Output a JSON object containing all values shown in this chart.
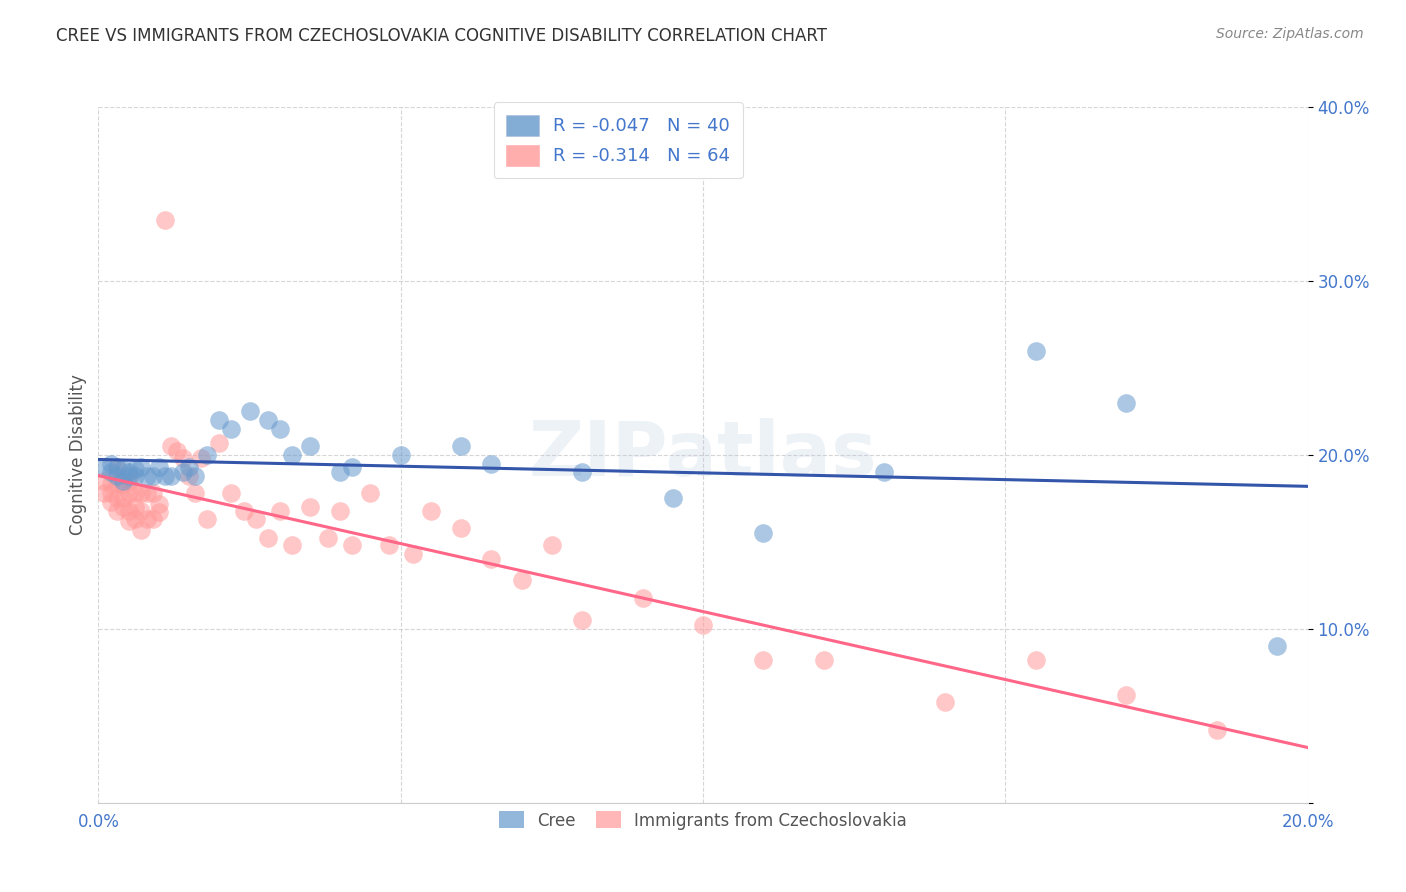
{
  "title": "CREE VS IMMIGRANTS FROM CZECHOSLOVAKIA COGNITIVE DISABILITY CORRELATION CHART",
  "source": "Source: ZipAtlas.com",
  "ylabel": "Cognitive Disability",
  "xlim": [
    0.0,
    0.2
  ],
  "ylim": [
    0.0,
    0.4
  ],
  "xticks": [
    0.0,
    0.05,
    0.1,
    0.15,
    0.2
  ],
  "xtick_labels": [
    "0.0%",
    "",
    "",
    "",
    "20.0%"
  ],
  "yticks": [
    0.0,
    0.1,
    0.2,
    0.3,
    0.4
  ],
  "ytick_labels": [
    "",
    "10.0%",
    "20.0%",
    "30.0%",
    "40.0%"
  ],
  "legend_labels": [
    "Cree",
    "Immigrants from Czechoslovakia"
  ],
  "cree_R": "-0.047",
  "cree_N": "40",
  "immig_R": "-0.314",
  "immig_N": "64",
  "blue_color": "#6699CC",
  "pink_color": "#FF9999",
  "blue_line_color": "#3355AA",
  "pink_line_color": "#FF6688",
  "label_color": "#4477CC",
  "background_color": "#FFFFFF",
  "grid_color": "#CCCCCC",
  "title_color": "#333333",
  "source_color": "#888888",
  "watermark": "ZIPatlas",
  "cree_x": [
    0.001,
    0.002,
    0.002,
    0.003,
    0.003,
    0.004,
    0.004,
    0.005,
    0.005,
    0.006,
    0.006,
    0.007,
    0.008,
    0.009,
    0.01,
    0.011,
    0.012,
    0.014,
    0.015,
    0.016,
    0.018,
    0.02,
    0.022,
    0.025,
    0.028,
    0.03,
    0.032,
    0.035,
    0.04,
    0.042,
    0.05,
    0.06,
    0.065,
    0.08,
    0.095,
    0.11,
    0.13,
    0.155,
    0.17,
    0.195
  ],
  "cree_y": [
    0.193,
    0.195,
    0.19,
    0.193,
    0.188,
    0.192,
    0.185,
    0.19,
    0.188,
    0.192,
    0.188,
    0.193,
    0.188,
    0.188,
    0.193,
    0.188,
    0.188,
    0.19,
    0.193,
    0.188,
    0.2,
    0.22,
    0.215,
    0.225,
    0.22,
    0.215,
    0.2,
    0.205,
    0.19,
    0.193,
    0.2,
    0.205,
    0.195,
    0.19,
    0.175,
    0.155,
    0.19,
    0.26,
    0.23,
    0.09
  ],
  "immig_x": [
    0.001,
    0.001,
    0.002,
    0.002,
    0.002,
    0.003,
    0.003,
    0.003,
    0.003,
    0.004,
    0.004,
    0.004,
    0.005,
    0.005,
    0.005,
    0.005,
    0.006,
    0.006,
    0.006,
    0.007,
    0.007,
    0.007,
    0.008,
    0.008,
    0.009,
    0.009,
    0.01,
    0.01,
    0.011,
    0.012,
    0.013,
    0.014,
    0.015,
    0.016,
    0.017,
    0.018,
    0.02,
    0.022,
    0.024,
    0.026,
    0.028,
    0.03,
    0.032,
    0.035,
    0.038,
    0.04,
    0.042,
    0.045,
    0.048,
    0.052,
    0.055,
    0.06,
    0.065,
    0.07,
    0.075,
    0.08,
    0.09,
    0.1,
    0.11,
    0.12,
    0.14,
    0.155,
    0.17,
    0.185
  ],
  "immig_y": [
    0.185,
    0.178,
    0.183,
    0.173,
    0.178,
    0.192,
    0.183,
    0.175,
    0.168,
    0.183,
    0.175,
    0.17,
    0.185,
    0.178,
    0.168,
    0.162,
    0.178,
    0.17,
    0.163,
    0.178,
    0.168,
    0.157,
    0.178,
    0.163,
    0.178,
    0.163,
    0.172,
    0.167,
    0.335,
    0.205,
    0.202,
    0.198,
    0.188,
    0.178,
    0.198,
    0.163,
    0.207,
    0.178,
    0.168,
    0.163,
    0.152,
    0.168,
    0.148,
    0.17,
    0.152,
    0.168,
    0.148,
    0.178,
    0.148,
    0.143,
    0.168,
    0.158,
    0.14,
    0.128,
    0.148,
    0.105,
    0.118,
    0.102,
    0.082,
    0.082,
    0.058,
    0.082,
    0.062,
    0.042
  ]
}
